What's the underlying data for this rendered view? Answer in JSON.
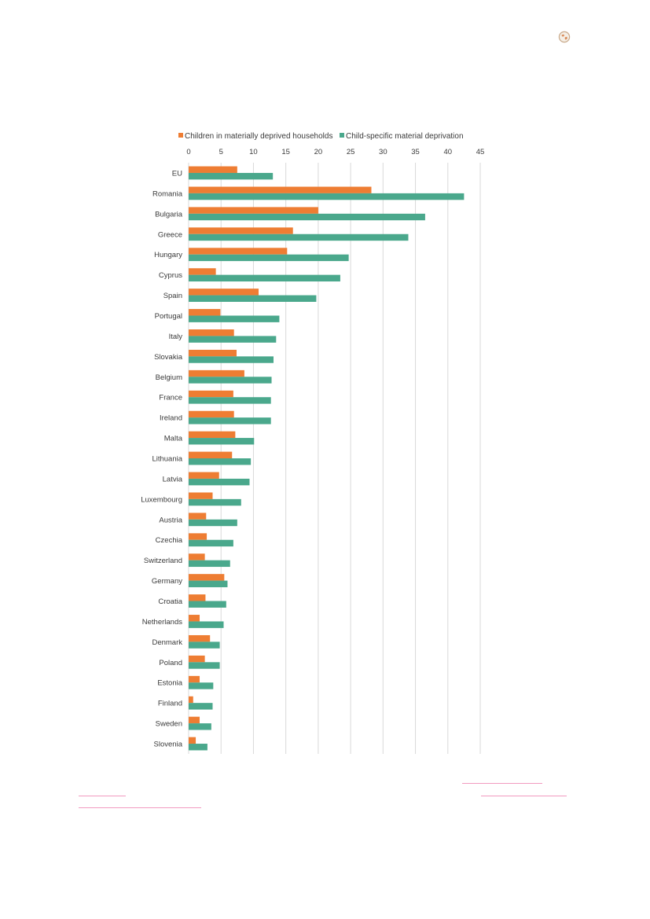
{
  "colors": {
    "series1": "#ee7d33",
    "series2": "#4aa88c",
    "grid": "#d9d9d9",
    "link_underline": "#f29ac0"
  },
  "corner_icon": "globe-icon",
  "chart_data": {
    "type": "bar",
    "orientation": "horizontal",
    "categories": [
      "EU",
      "Romania",
      "Bulgaria",
      "Greece",
      "Hungary",
      "Cyprus",
      "Spain",
      "Portugal",
      "Italy",
      "Slovakia",
      "Belgium",
      "France",
      "Ireland",
      "Malta",
      "Lithuania",
      "Latvia",
      "Luxembourg",
      "Austria",
      "Czechia",
      "Switzerland",
      "Germany",
      "Croatia",
      "Netherlands",
      "Denmark",
      "Poland",
      "Estonia",
      "Finland",
      "Sweden",
      "Slovenia"
    ],
    "series": [
      {
        "name": "Children in materially deprived households",
        "values": [
          7.5,
          28.2,
          20.0,
          16.1,
          15.2,
          4.2,
          10.8,
          4.9,
          7.0,
          7.4,
          8.6,
          6.9,
          7.0,
          7.2,
          6.7,
          4.7,
          3.7,
          2.7,
          2.8,
          2.5,
          5.5,
          2.6,
          1.7,
          3.3,
          2.5,
          1.7,
          0.7,
          1.7,
          1.1
        ]
      },
      {
        "name": "Child-specific material deprivation",
        "values": [
          13.0,
          42.5,
          36.5,
          33.9,
          24.7,
          23.4,
          19.7,
          14.0,
          13.5,
          13.1,
          12.8,
          12.7,
          12.7,
          10.1,
          9.6,
          9.4,
          8.1,
          7.5,
          6.9,
          6.4,
          6.0,
          5.8,
          5.4,
          4.8,
          4.8,
          3.8,
          3.7,
          3.5,
          2.9
        ]
      }
    ],
    "xlim": [
      0,
      45
    ],
    "xticks": [
      0,
      5,
      10,
      15,
      20,
      25,
      30,
      35,
      40,
      45
    ],
    "grid": true,
    "legend_position": "top"
  }
}
